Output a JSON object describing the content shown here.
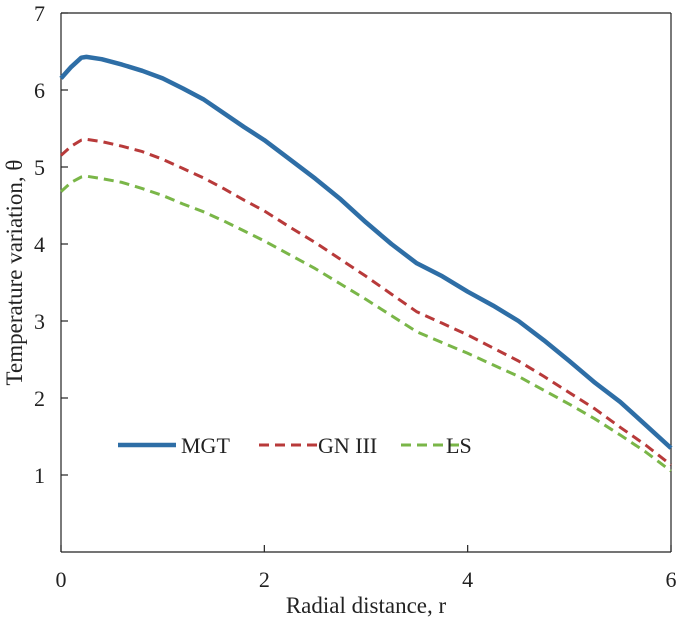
{
  "chart_data": {
    "type": "line",
    "title": "",
    "xlabel": "Radial distance, r",
    "ylabel": "Temperature variation, θ",
    "xlim": [
      0,
      6
    ],
    "ylim": [
      0,
      7
    ],
    "xticks": [
      0,
      2,
      4,
      6
    ],
    "yticks": [
      1,
      2,
      3,
      4,
      5,
      6,
      7
    ],
    "legend_position": "lower-left",
    "series": [
      {
        "name": "MGT",
        "color": "#2e6ea6",
        "style": "solid",
        "x": [
          0,
          0.1,
          0.2,
          0.25,
          0.4,
          0.6,
          0.8,
          1.0,
          1.2,
          1.4,
          1.6,
          1.8,
          2.0,
          2.25,
          2.5,
          2.75,
          3.0,
          3.25,
          3.5,
          3.75,
          4.0,
          4.25,
          4.5,
          4.75,
          5.0,
          5.25,
          5.5,
          5.75,
          6.0
        ],
        "y": [
          6.15,
          6.3,
          6.42,
          6.43,
          6.4,
          6.33,
          6.25,
          6.15,
          6.02,
          5.88,
          5.7,
          5.52,
          5.35,
          5.1,
          4.85,
          4.58,
          4.28,
          4.0,
          3.75,
          3.58,
          3.38,
          3.2,
          3.0,
          2.75,
          2.48,
          2.2,
          1.95,
          1.65,
          1.35
        ]
      },
      {
        "name": "GN III",
        "color": "#b83a3a",
        "style": "dashed",
        "x": [
          0,
          0.1,
          0.2,
          0.25,
          0.4,
          0.6,
          0.8,
          1.0,
          1.2,
          1.4,
          1.6,
          1.8,
          2.0,
          2.25,
          2.5,
          2.75,
          3.0,
          3.25,
          3.5,
          3.75,
          4.0,
          4.25,
          4.5,
          4.75,
          5.0,
          5.25,
          5.5,
          5.75,
          6.0
        ],
        "y": [
          5.15,
          5.27,
          5.35,
          5.36,
          5.33,
          5.27,
          5.2,
          5.1,
          4.98,
          4.86,
          4.72,
          4.57,
          4.43,
          4.22,
          4.02,
          3.8,
          3.58,
          3.35,
          3.12,
          2.97,
          2.82,
          2.65,
          2.48,
          2.28,
          2.07,
          1.86,
          1.62,
          1.39,
          1.13
        ]
      },
      {
        "name": "LS",
        "color": "#7ab648",
        "style": "dashed",
        "x": [
          0,
          0.1,
          0.2,
          0.25,
          0.4,
          0.6,
          0.8,
          1.0,
          1.2,
          1.4,
          1.6,
          1.8,
          2.0,
          2.25,
          2.5,
          2.75,
          3.0,
          3.25,
          3.5,
          3.75,
          4.0,
          4.25,
          4.5,
          4.75,
          5.0,
          5.25,
          5.5,
          5.75,
          6.0
        ],
        "y": [
          4.68,
          4.8,
          4.87,
          4.88,
          4.85,
          4.8,
          4.72,
          4.63,
          4.52,
          4.42,
          4.3,
          4.17,
          4.04,
          3.86,
          3.68,
          3.48,
          3.28,
          3.07,
          2.86,
          2.72,
          2.58,
          2.43,
          2.28,
          2.1,
          1.92,
          1.73,
          1.52,
          1.3,
          1.05
        ]
      }
    ]
  }
}
